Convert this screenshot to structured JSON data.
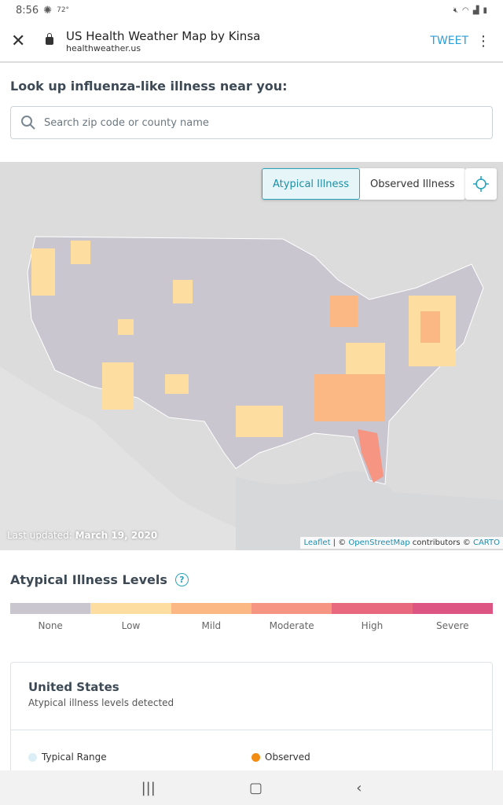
{
  "status_bar": {
    "time": "8:56",
    "temp": "72°"
  },
  "browser": {
    "title": "US Health Weather Map by Kinsa",
    "url": "healthweather.us",
    "tweet": "TWEET"
  },
  "lookup": {
    "heading": "Look up influenza-like illness near you:",
    "placeholder": "Search zip code or county name"
  },
  "map": {
    "toggle": [
      {
        "label": "Atypical Illness",
        "active": true
      },
      {
        "label": "Observed Illness",
        "active": false
      }
    ],
    "updated_label": "Last updated:",
    "updated_date": "March 19, 2020",
    "attribution": {
      "leaflet": "Leaflet",
      "sep": " | © ",
      "osm": "OpenStreetMap",
      "contrib": " contributors © ",
      "carto": "CARTO"
    }
  },
  "levels": {
    "title": "Atypical Illness Levels",
    "help": "?",
    "items": [
      {
        "label": "None",
        "color": "#c9c6cf"
      },
      {
        "label": "Low",
        "color": "#fdddA0"
      },
      {
        "label": "Mild",
        "color": "#fbb885"
      },
      {
        "label": "Moderate",
        "color": "#f59582"
      },
      {
        "label": "High",
        "color": "#e8697e"
      },
      {
        "label": "Severe",
        "color": "#dd5683"
      }
    ]
  },
  "card": {
    "title": "United States",
    "subtitle": "Atypical illness levels detected",
    "legend": [
      {
        "label": "Typical Range",
        "color": "#dceef6"
      },
      {
        "label": "Observed",
        "color": "#f28c13"
      }
    ]
  }
}
